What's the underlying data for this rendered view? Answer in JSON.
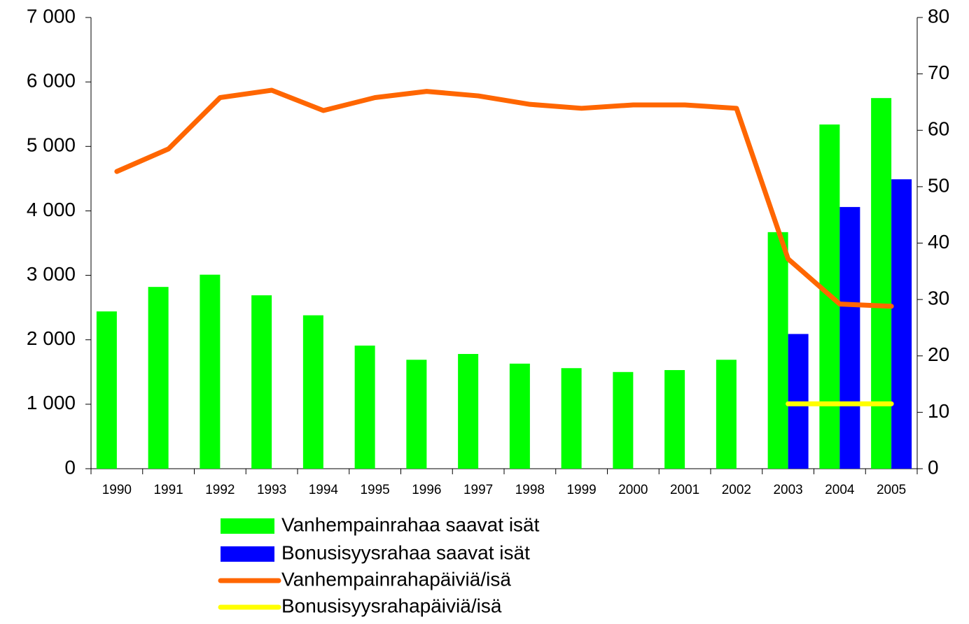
{
  "chart_data": {
    "type": "bar",
    "categories": [
      "1990",
      "1991",
      "1992",
      "1993",
      "1994",
      "1995",
      "1996",
      "1997",
      "1998",
      "1999",
      "2000",
      "2001",
      "2002",
      "2003",
      "2004",
      "2005"
    ],
    "series": [
      {
        "name": "Vanhempainrahaa saavat isät",
        "type": "bar",
        "color": "#00ff00",
        "values": [
          2440,
          2820,
          3010,
          2690,
          2380,
          1910,
          1690,
          1780,
          1630,
          1560,
          1500,
          1530,
          1690,
          3670,
          5340,
          5750
        ]
      },
      {
        "name": "Bonusisyysrahaa saavat isät",
        "type": "bar",
        "color": "#0000ff",
        "values": [
          null,
          null,
          null,
          null,
          null,
          null,
          null,
          null,
          null,
          null,
          null,
          null,
          null,
          2090,
          4060,
          4490
        ]
      },
      {
        "name": "Vanhempainrahapäiviä/isä",
        "type": "line",
        "axis": "y2",
        "color": "#ff6600",
        "values": [
          52.7,
          56.7,
          65.8,
          67.1,
          63.5,
          65.8,
          66.9,
          66.1,
          64.6,
          63.9,
          64.5,
          64.5,
          63.9,
          37.2,
          29.2,
          28.8
        ]
      },
      {
        "name": "Bonusisyysrahapäiviä/isä",
        "type": "line",
        "axis": "y2",
        "color": "#ffff00",
        "values": [
          null,
          null,
          null,
          null,
          null,
          null,
          null,
          null,
          null,
          null,
          null,
          null,
          null,
          11.5,
          11.5,
          11.5
        ]
      }
    ],
    "ylim": [
      0,
      7000
    ],
    "yticks": [
      0,
      {
        "value": 1000,
        "label": "1 000"
      },
      {
        "value": 2000,
        "label": "2 000"
      },
      {
        "value": 3000,
        "label": "3 000"
      },
      {
        "value": 4000,
        "label": "4 000"
      },
      {
        "value": 5000,
        "label": "5 000"
      },
      {
        "value": 6000,
        "label": "6 000"
      },
      {
        "value": 7000,
        "label": "7 000"
      }
    ],
    "y2lim": [
      0,
      80
    ],
    "y2ticks": [
      0,
      10,
      20,
      30,
      40,
      50,
      60,
      70,
      80
    ],
    "legend": "bottom"
  }
}
